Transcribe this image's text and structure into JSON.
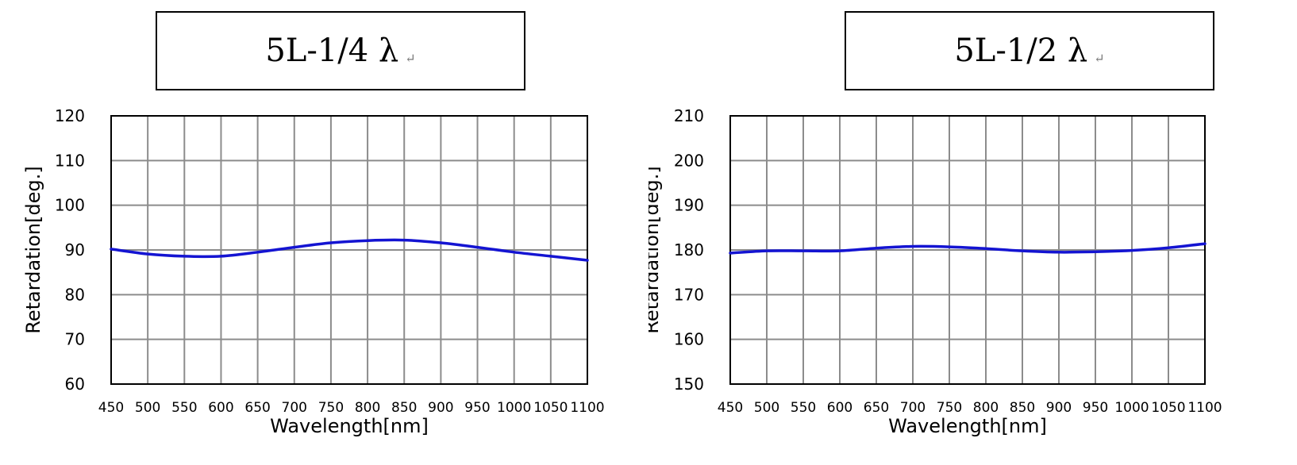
{
  "chart_data": [
    {
      "type": "line",
      "title": "5L-1/4 λ",
      "title_mark": "↵",
      "xlabel": "Wavelength[nm]",
      "ylabel": "Retardation[deg.]",
      "xlim": [
        450,
        1100
      ],
      "ylim": [
        60,
        120
      ],
      "xticks": [
        450,
        500,
        550,
        600,
        650,
        700,
        750,
        800,
        850,
        900,
        950,
        1000,
        1050,
        1100
      ],
      "yticks": [
        60,
        70,
        80,
        90,
        100,
        110,
        120
      ],
      "grid": true,
      "line_color": "#1414d2",
      "series": [
        {
          "x": [
            450,
            500,
            550,
            600,
            650,
            700,
            750,
            800,
            850,
            900,
            950,
            1000,
            1050,
            1100
          ],
          "values": [
            90.2,
            89.1,
            88.6,
            88.6,
            89.5,
            90.6,
            91.6,
            92.1,
            92.2,
            91.6,
            90.6,
            89.5,
            88.6,
            87.7
          ]
        }
      ]
    },
    {
      "type": "line",
      "title": "5L-1/2 λ",
      "title_mark": "↵",
      "xlabel": "Wavelength[nm]",
      "ylabel": "Retardation[deg.]",
      "xlim": [
        450,
        1100
      ],
      "ylim": [
        150,
        210
      ],
      "xticks": [
        450,
        500,
        550,
        600,
        650,
        700,
        750,
        800,
        850,
        900,
        950,
        1000,
        1050,
        1100
      ],
      "yticks": [
        150,
        160,
        170,
        180,
        190,
        200,
        210
      ],
      "grid": true,
      "line_color": "#1414d2",
      "series": [
        {
          "x": [
            450,
            500,
            550,
            600,
            650,
            700,
            750,
            800,
            850,
            900,
            950,
            1000,
            1050,
            1100
          ],
          "values": [
            179.3,
            179.8,
            179.8,
            179.8,
            180.4,
            180.8,
            180.7,
            180.3,
            179.8,
            179.5,
            179.6,
            179.9,
            180.5,
            181.4
          ]
        }
      ]
    }
  ]
}
